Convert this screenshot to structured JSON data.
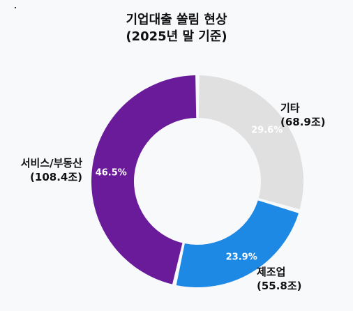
{
  "chart_data": {
    "type": "pie",
    "title_lines": [
      "기업대출 쏠림 현상",
      "(2025년 말 기준)"
    ],
    "slices": [
      {
        "category": "기타",
        "amount": "(68.9조)",
        "value": 68.9,
        "percent_label": "29.6%",
        "color": "#e0e0e0"
      },
      {
        "category": "제조업",
        "amount": "(55.8조)",
        "value": 55.8,
        "percent_label": "23.9%",
        "color": "#1e88e5"
      },
      {
        "category": "서비스/부동산",
        "amount": "(108.4조)",
        "value": 108.4,
        "percent_label": "46.5%",
        "color": "#6a1b9a"
      }
    ],
    "donut": true,
    "legend": "none"
  }
}
